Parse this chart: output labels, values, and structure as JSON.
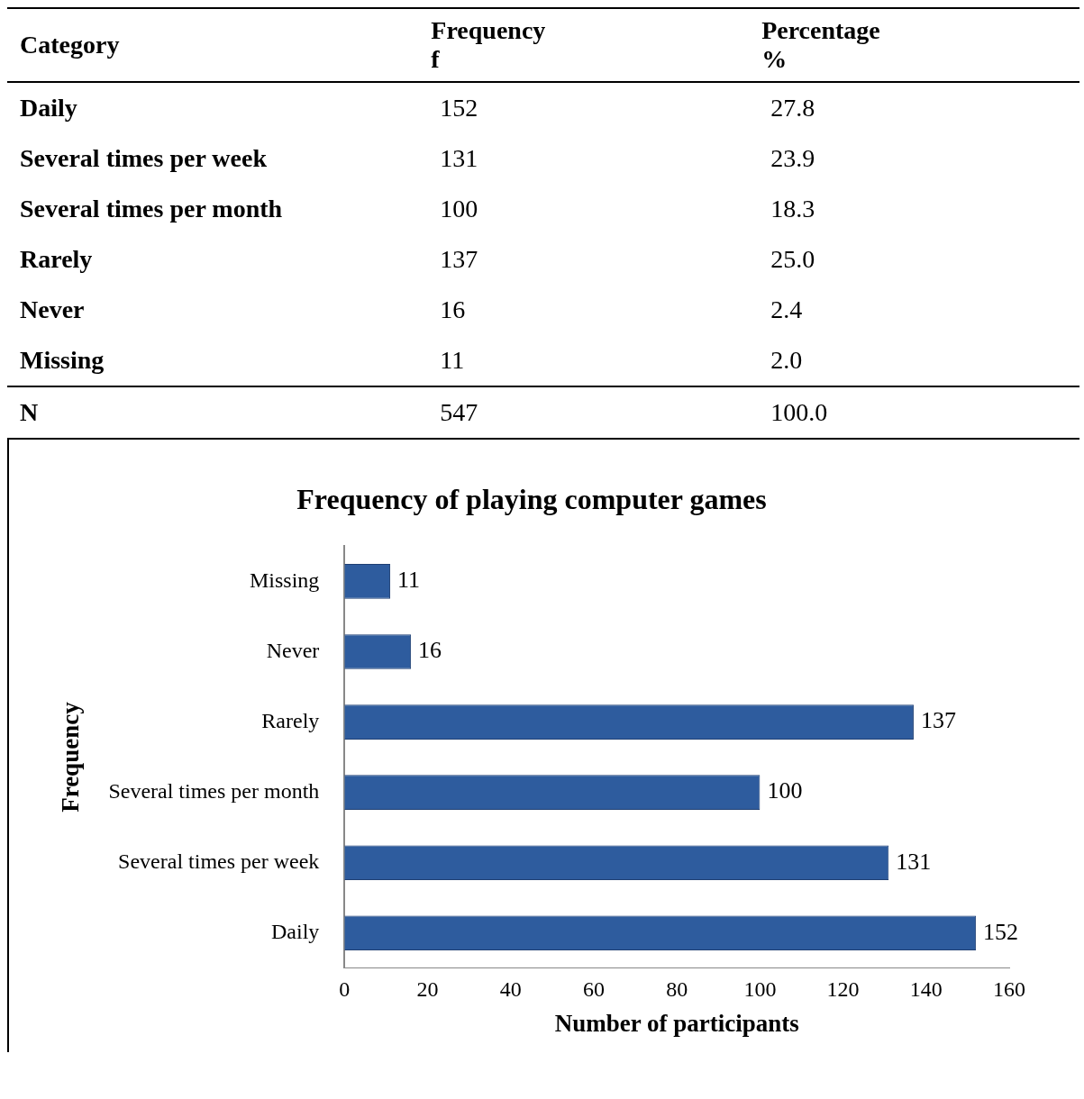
{
  "chart_data": [
    {
      "type": "other",
      "xlabel": "Category",
      "data_labels": true,
      "categories": [
        "Daily",
        "Several times per week",
        "Several times per month",
        "Rarely",
        "Never",
        "Missing",
        "N"
      ],
      "series": [
        {
          "name": "Frequency f",
          "values": [
            152,
            131,
            100,
            137,
            16,
            11,
            547
          ]
        },
        {
          "name": "Percentage %",
          "values": [
            27.8,
            23.9,
            18.3,
            25.0,
            2.4,
            2.0,
            100.0
          ],
          "value_labels": [
            "27.8",
            "23.9",
            "18.3",
            "25.0",
            "2.4",
            "2.0",
            "100.0"
          ]
        }
      ]
    },
    {
      "type": "bar",
      "orientation": "horizontal",
      "title": "Frequency of playing computer games",
      "xlabel": "Number of participants",
      "ylabel": "Frequency",
      "categories": [
        "Missing",
        "Never",
        "Rarely",
        "Several times per month",
        "Several times per week",
        "Daily"
      ],
      "values": [
        11,
        16,
        137,
        100,
        131,
        152
      ],
      "color": "#2e5c9e",
      "xlim": [
        0,
        160
      ],
      "xticks": [
        0,
        20,
        40,
        60,
        80,
        100,
        120,
        140,
        160
      ],
      "data_labels": true,
      "grid": false,
      "legend": false
    }
  ]
}
